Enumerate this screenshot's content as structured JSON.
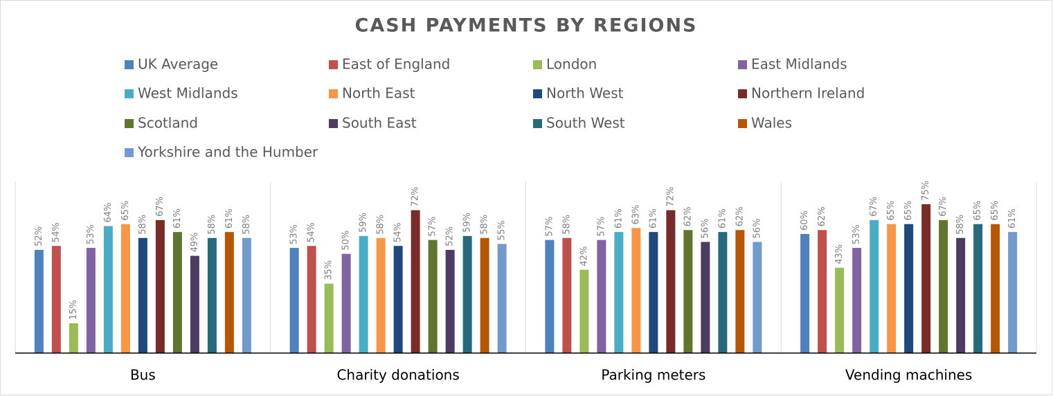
{
  "chart_data": {
    "type": "bar",
    "title": "CASH PAYMENTS BY REGIONS",
    "categories": [
      "Bus",
      "Charity donations",
      "Parking meters",
      "Vending machines"
    ],
    "series": [
      {
        "name": "UK Average",
        "color": "#4f81bd",
        "values": [
          52,
          53,
          57,
          60
        ],
        "value_labels": [
          "52%",
          "53%",
          "57%",
          "60%"
        ]
      },
      {
        "name": "East of England",
        "color": "#c0504d",
        "values": [
          54,
          54,
          58,
          62
        ],
        "value_labels": [
          "54%",
          "54%",
          "58%",
          "62%"
        ]
      },
      {
        "name": "London",
        "color": "#9bbb59",
        "values": [
          15,
          35,
          42,
          43
        ],
        "value_labels": [
          "15%",
          "35%",
          "42%",
          "43%"
        ]
      },
      {
        "name": "East Midlands",
        "color": "#8064a2",
        "values": [
          53,
          50,
          57,
          53
        ],
        "value_labels": [
          "53%",
          "50%",
          "57%",
          "53%"
        ]
      },
      {
        "name": "West Midlands",
        "color": "#4bacc6",
        "values": [
          64,
          59,
          61,
          67
        ],
        "value_labels": [
          "64%",
          "59%",
          "61%",
          "67%"
        ]
      },
      {
        "name": "North East",
        "color": "#f79646",
        "values": [
          65,
          58,
          63,
          65
        ],
        "value_labels": [
          "65%",
          "58%",
          "63%",
          "65%"
        ]
      },
      {
        "name": "North West",
        "color": "#1f497d",
        "values": [
          58,
          54,
          61,
          65
        ],
        "value_labels": [
          "58%",
          "54%",
          "61%",
          "65%"
        ]
      },
      {
        "name": "Northern Ireland",
        "color": "#772c2a",
        "values": [
          67,
          72,
          72,
          75
        ],
        "value_labels": [
          "67%",
          "72%",
          "72%",
          "75%"
        ]
      },
      {
        "name": "Scotland",
        "color": "#5f7530",
        "values": [
          61,
          57,
          62,
          67
        ],
        "value_labels": [
          "61%",
          "57%",
          "62%",
          "67%"
        ]
      },
      {
        "name": "South East",
        "color": "#4d3b62",
        "values": [
          49,
          52,
          56,
          58
        ],
        "value_labels": [
          "49%",
          "52%",
          "56%",
          "58%"
        ]
      },
      {
        "name": "South West",
        "color": "#276a7c",
        "values": [
          58,
          59,
          61,
          65
        ],
        "value_labels": [
          "58%",
          "59%",
          "61%",
          "65%"
        ]
      },
      {
        "name": "Wales",
        "color": "#b65708",
        "values": [
          61,
          58,
          62,
          65
        ],
        "value_labels": [
          "61%",
          "58%",
          "62%",
          "65%"
        ]
      },
      {
        "name": "Yorkshire and the Humber",
        "color": "#729aca",
        "values": [
          58,
          55,
          56,
          61
        ],
        "value_labels": [
          "58%",
          "55%",
          "56%",
          "61%"
        ]
      }
    ]
  }
}
